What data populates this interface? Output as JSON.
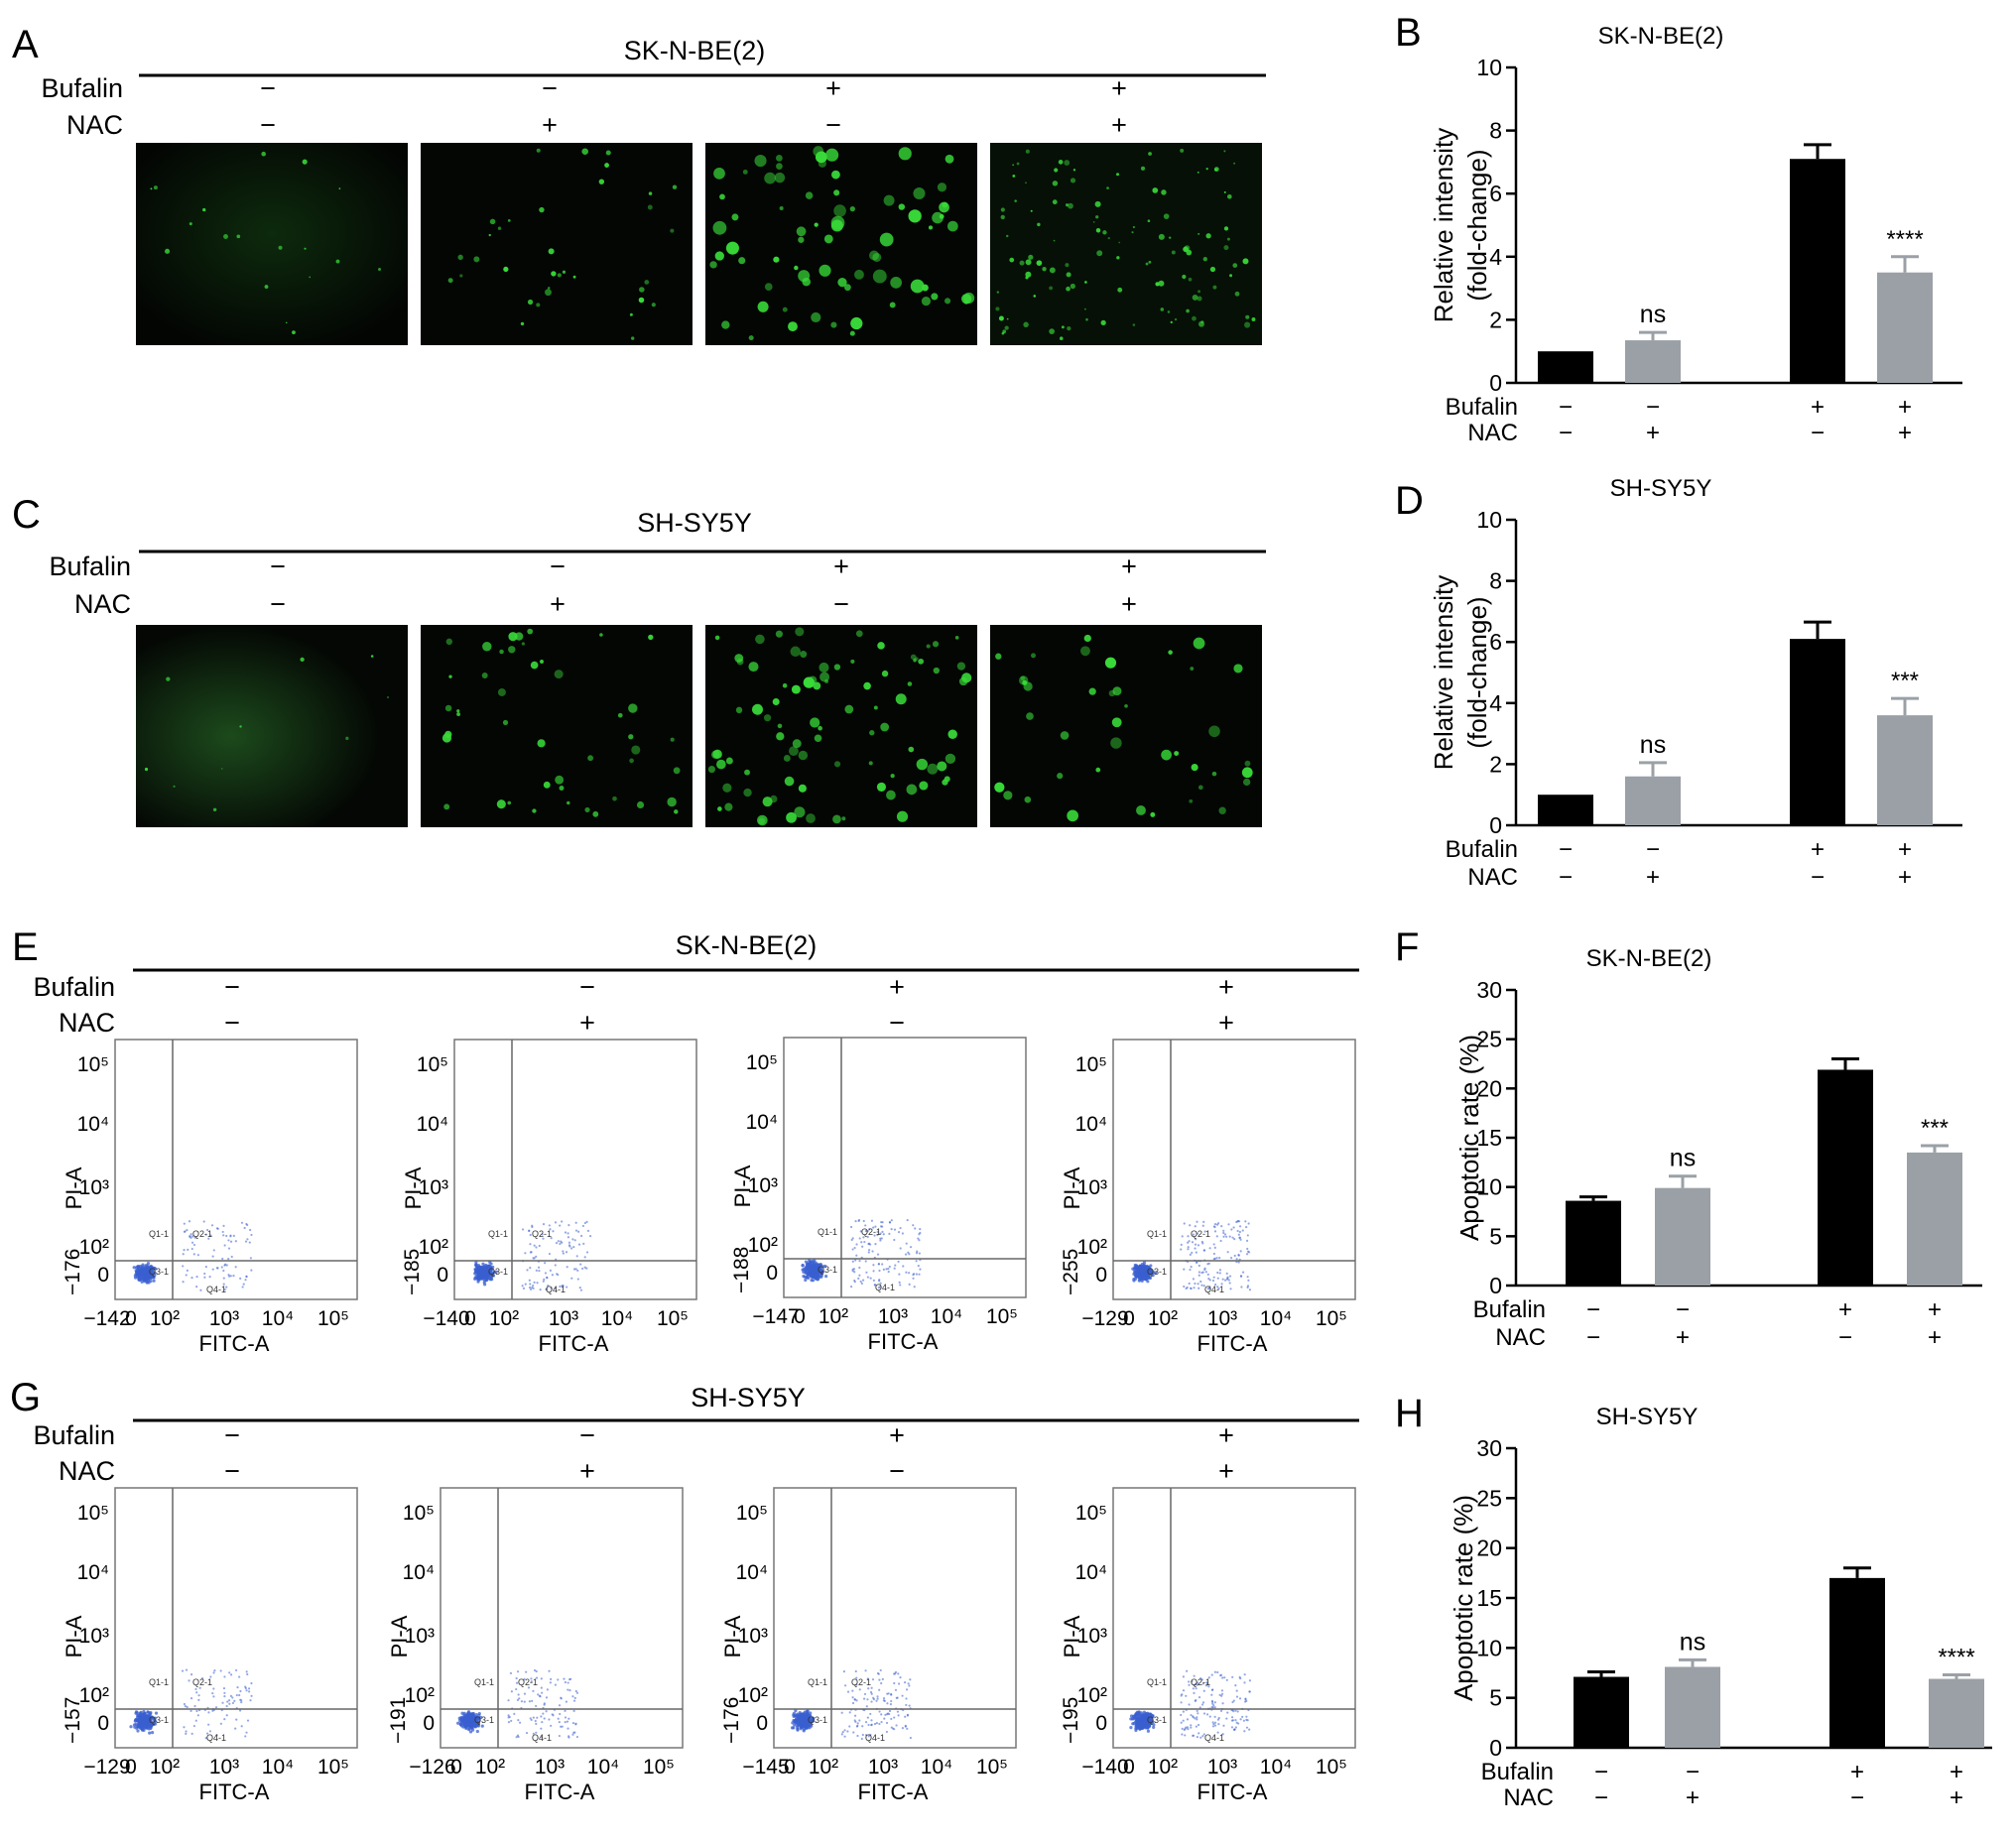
{
  "panels": {
    "A": {
      "letter": "A",
      "cell_line": "SK-N-BE(2)"
    },
    "B": {
      "letter": "B"
    },
    "C": {
      "letter": "C",
      "cell_line": "SH-SY5Y"
    },
    "D": {
      "letter": "D"
    },
    "E": {
      "letter": "E",
      "cell_line": "SK-N-BE(2)"
    },
    "F": {
      "letter": "F"
    },
    "G": {
      "letter": "G",
      "cell_line": "SH-SY5Y"
    },
    "H": {
      "letter": "H"
    }
  },
  "treatments": {
    "row1_label": "Bufalin",
    "row2_label": "NAC",
    "bufalin": [
      "−",
      "−",
      "+",
      "+"
    ],
    "nac": [
      "−",
      "+",
      "−",
      "+"
    ]
  },
  "flow": {
    "x_axis_label": "FITC-A",
    "y_axis_label": "PI-A",
    "y_ticks": [
      "10⁵",
      "10⁴",
      "10³",
      "10²",
      "0"
    ],
    "x_ticks": [
      "0",
      "10²",
      "10³",
      "10⁴",
      "10⁵"
    ],
    "quadrants": [
      "Q1-1",
      "Q2-1",
      "Q3-1",
      "Q4-1"
    ],
    "E_plots": [
      {
        "x_min": "−142",
        "y_min": "−176"
      },
      {
        "x_min": "−140",
        "y_min": "−185"
      },
      {
        "x_min": "−147",
        "y_min": "−188"
      },
      {
        "x_min": "−129",
        "y_min": "−255"
      }
    ],
    "G_plots": [
      {
        "x_min": "−129",
        "y_min": "−157"
      },
      {
        "x_min": "−126",
        "y_min": "−191"
      },
      {
        "x_min": "−145",
        "y_min": "−176"
      },
      {
        "x_min": "−140",
        "y_min": "−195"
      }
    ]
  },
  "colors": {
    "black_bar": "#000000",
    "grey_bar": "#9aa0a6",
    "fluorescence": "#38d938",
    "flow_dots": "#3a5fd0"
  },
  "chart_data": [
    {
      "panel": "B",
      "type": "bar",
      "title": "SK-N-BE(2)",
      "ylabel": "Relative intensity (fold-change)",
      "ylim": [
        0,
        10
      ],
      "yticks": [
        0,
        2,
        4,
        6,
        8,
        10
      ],
      "values": [
        1.0,
        1.35,
        7.1,
        3.5
      ],
      "errors": [
        0,
        0.25,
        0.45,
        0.5
      ],
      "annotations": [
        "",
        "ns",
        "",
        "****"
      ]
    },
    {
      "panel": "D",
      "type": "bar",
      "title": "SH-SY5Y",
      "ylabel": "Relative intensity (fold-change)",
      "ylim": [
        0,
        10
      ],
      "yticks": [
        0,
        2,
        4,
        6,
        8,
        10
      ],
      "values": [
        1.0,
        1.6,
        6.1,
        3.6
      ],
      "errors": [
        0,
        0.45,
        0.55,
        0.55
      ],
      "annotations": [
        "",
        "ns",
        "",
        "***"
      ]
    },
    {
      "panel": "F",
      "type": "bar",
      "title": "SK-N-BE(2)",
      "ylabel": "Apoptotic rate (%)",
      "ylim": [
        0,
        30
      ],
      "yticks": [
        0,
        5,
        10,
        15,
        20,
        25,
        30
      ],
      "values": [
        8.6,
        9.9,
        21.9,
        13.5
      ],
      "errors": [
        0.4,
        1.2,
        1.1,
        0.7
      ],
      "annotations": [
        "",
        "ns",
        "",
        "***"
      ]
    },
    {
      "panel": "H",
      "type": "bar",
      "title": "SH-SY5Y",
      "ylabel": "Apoptotic rate (%)",
      "ylim": [
        0,
        30
      ],
      "yticks": [
        0,
        5,
        10,
        15,
        20,
        25,
        30
      ],
      "values": [
        7.1,
        8.1,
        17.0,
        6.9
      ],
      "errors": [
        0.5,
        0.7,
        1.0,
        0.4
      ],
      "annotations": [
        "",
        "ns",
        "",
        "****"
      ]
    }
  ]
}
